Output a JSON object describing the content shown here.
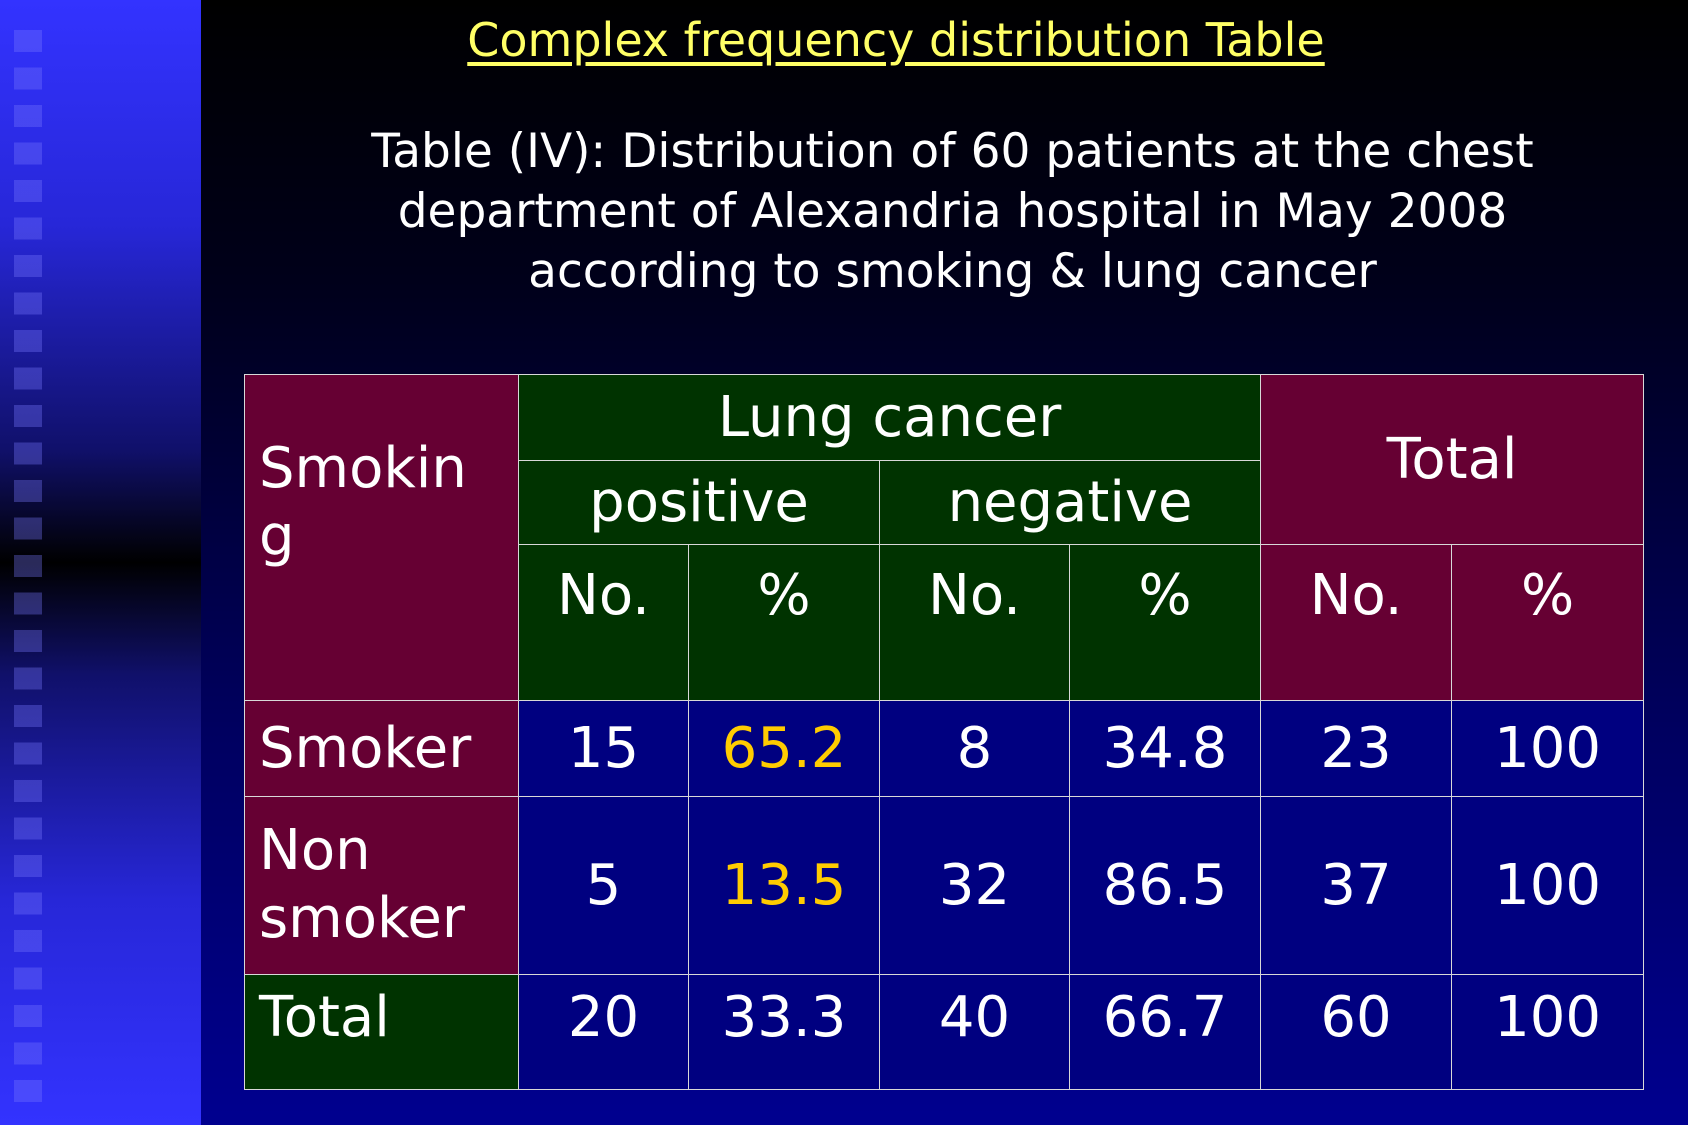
{
  "slide": {
    "heading": "Complex frequency distribution Table",
    "caption_lines": [
      "Table (IV): Distribution of 60 patients at the chest",
      "department of Alexandria hospital in May 2008",
      "according to smoking & lung cancer"
    ]
  },
  "table": {
    "row_header": "Smokin g",
    "group_header": "Lung cancer",
    "subgroups": [
      "positive",
      "negative"
    ],
    "total_header": "Total",
    "col_no": "No.",
    "col_pct": "%",
    "rows": [
      {
        "label": "Smoker",
        "pos_no": "15",
        "pos_pct": "65.2",
        "neg_no": "8",
        "neg_pct": "34.8",
        "tot_no": "23",
        "tot_pct": "100"
      },
      {
        "label_lines": [
          "Non",
          "smoker"
        ],
        "pos_no": "5",
        "pos_pct": "13.5",
        "neg_no": "32",
        "neg_pct": "86.5",
        "tot_no": "37",
        "tot_pct": "100"
      },
      {
        "label": "Total",
        "pos_no": "20",
        "pos_pct": "33.3",
        "neg_no": "40",
        "neg_pct": "66.7",
        "tot_no": "60",
        "tot_pct": "100"
      }
    ]
  },
  "colors": {
    "maroon": "#660033",
    "green": "#003300",
    "navy": "#000080",
    "heading": "#ffff66",
    "highlight": "#ffcc00"
  }
}
